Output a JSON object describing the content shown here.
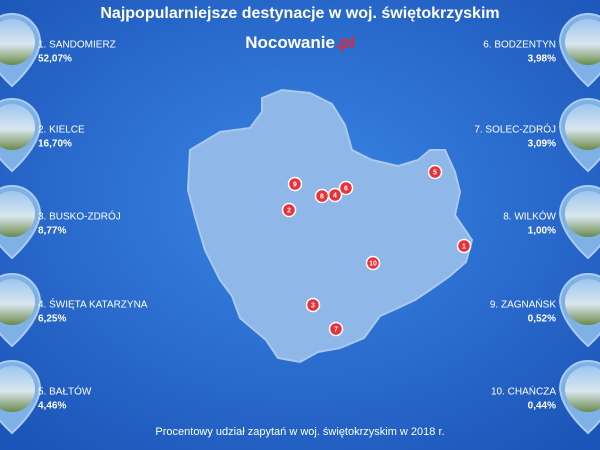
{
  "header": {
    "title": "Najpopularniejsze destynacje w woj. świętokrzyskim",
    "brand": "Nocowanie",
    "brand_suffix": ".pl"
  },
  "destinations": [
    {
      "label": "1. SANDOMIERZ",
      "share": "52,07%"
    },
    {
      "label": "2. KIELCE",
      "share": "16,70%"
    },
    {
      "label": "3. BUSKO-ZDRÓJ",
      "share": "8,77%"
    },
    {
      "label": "4. ŚWIĘTA KATARZYNA",
      "share": "6,25%"
    },
    {
      "label": "5. BAŁTÓW",
      "share": "4,46%"
    },
    {
      "label": "6. BODZENTYN",
      "share": "3,98%"
    },
    {
      "label": "7. SOLEC-ZDRÓJ",
      "share": "3,09%"
    },
    {
      "label": "8. WILKÓW",
      "share": "1,00%"
    },
    {
      "label": "9. ZAGNAŃSK",
      "share": "0,52%"
    },
    {
      "label": "10. CHAŃCZA",
      "share": "0,44%"
    }
  ],
  "map_markers": [
    "1",
    "2",
    "3",
    "4",
    "5",
    "6",
    "7",
    "8",
    "9",
    "10"
  ],
  "footer": "Procentowy udział zapytań w woj. świętokrzyskim w 2018 r."
}
